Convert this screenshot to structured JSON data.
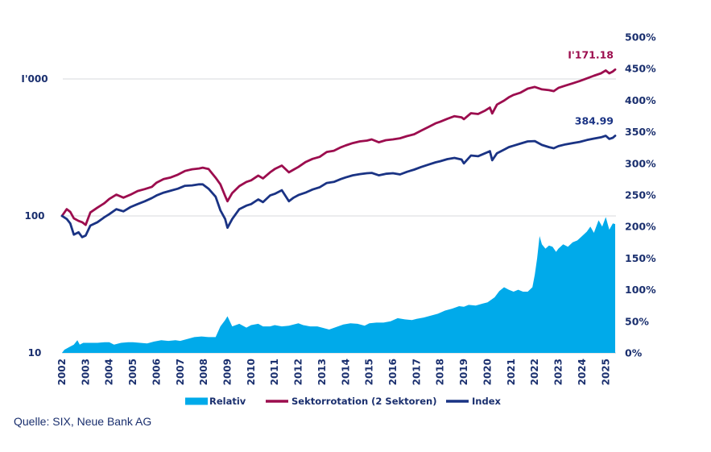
{
  "chart_data": {
    "type": "line",
    "x_axis": {
      "ticks": [
        "2002",
        "2003",
        "2004",
        "2005",
        "2006",
        "2007",
        "2008",
        "2009",
        "2010",
        "2011",
        "2012",
        "2013",
        "2014",
        "2015",
        "2016",
        "2017",
        "2018",
        "2019",
        "2020",
        "2021",
        "2022",
        "2023",
        "2024",
        "2025"
      ],
      "range": [
        2002,
        2025.4
      ]
    },
    "y_left": {
      "scale": "log",
      "range": [
        10,
        5000
      ],
      "ticks": [
        10,
        100,
        1000
      ],
      "tick_labels": [
        "10",
        "100",
        "I'000"
      ]
    },
    "y_right": {
      "range": [
        0,
        500
      ],
      "ticks": [
        0,
        50,
        100,
        150,
        200,
        250,
        300,
        350,
        400,
        450,
        500
      ],
      "tick_labels": [
        "0%",
        "50%",
        "100%",
        "150%",
        "200%",
        "250%",
        "300%",
        "350%",
        "400%",
        "450%",
        "500%"
      ]
    },
    "grid": "horizontal at 100 and 1000 on left axis",
    "series": [
      {
        "name": "Relativ",
        "type": "area",
        "axis": "right",
        "color": "#00aaea",
        "points": [
          [
            2002.0,
            0
          ],
          [
            2002.1,
            5
          ],
          [
            2002.3,
            9
          ],
          [
            2002.5,
            13
          ],
          [
            2002.65,
            20
          ],
          [
            2002.75,
            13
          ],
          [
            2002.9,
            16
          ],
          [
            2003.2,
            16
          ],
          [
            2003.5,
            16
          ],
          [
            2003.8,
            17
          ],
          [
            2004.0,
            17
          ],
          [
            2004.2,
            13
          ],
          [
            2004.5,
            16
          ],
          [
            2004.8,
            17
          ],
          [
            2005.0,
            17
          ],
          [
            2005.3,
            16
          ],
          [
            2005.6,
            15
          ],
          [
            2005.9,
            18
          ],
          [
            2006.2,
            20
          ],
          [
            2006.5,
            19
          ],
          [
            2006.8,
            20
          ],
          [
            2007.0,
            19
          ],
          [
            2007.3,
            22
          ],
          [
            2007.6,
            25
          ],
          [
            2007.9,
            26
          ],
          [
            2008.2,
            25
          ],
          [
            2008.5,
            25
          ],
          [
            2008.7,
            42
          ],
          [
            2008.9,
            52
          ],
          [
            2009.0,
            58
          ],
          [
            2009.1,
            50
          ],
          [
            2009.2,
            42
          ],
          [
            2009.5,
            46
          ],
          [
            2009.8,
            40
          ],
          [
            2010.0,
            44
          ],
          [
            2010.3,
            46
          ],
          [
            2010.5,
            42
          ],
          [
            2010.8,
            42
          ],
          [
            2011.0,
            44
          ],
          [
            2011.3,
            42
          ],
          [
            2011.6,
            43
          ],
          [
            2011.8,
            45
          ],
          [
            2012.0,
            47
          ],
          [
            2012.2,
            44
          ],
          [
            2012.5,
            42
          ],
          [
            2012.8,
            42
          ],
          [
            2013.0,
            40
          ],
          [
            2013.3,
            37
          ],
          [
            2013.6,
            41
          ],
          [
            2013.9,
            45
          ],
          [
            2014.2,
            47
          ],
          [
            2014.5,
            46
          ],
          [
            2014.8,
            43
          ],
          [
            2015.0,
            47
          ],
          [
            2015.3,
            48
          ],
          [
            2015.6,
            48
          ],
          [
            2015.9,
            50
          ],
          [
            2016.2,
            55
          ],
          [
            2016.5,
            53
          ],
          [
            2016.8,
            52
          ],
          [
            2017.0,
            54
          ],
          [
            2017.3,
            56
          ],
          [
            2017.6,
            59
          ],
          [
            2017.9,
            62
          ],
          [
            2018.2,
            67
          ],
          [
            2018.5,
            70
          ],
          [
            2018.8,
            74
          ],
          [
            2019.0,
            73
          ],
          [
            2019.2,
            76
          ],
          [
            2019.5,
            75
          ],
          [
            2019.8,
            78
          ],
          [
            2020.0,
            80
          ],
          [
            2020.3,
            88
          ],
          [
            2020.5,
            98
          ],
          [
            2020.7,
            104
          ],
          [
            2020.9,
            100
          ],
          [
            2021.1,
            97
          ],
          [
            2021.3,
            100
          ],
          [
            2021.5,
            97
          ],
          [
            2021.7,
            97
          ],
          [
            2021.9,
            104
          ],
          [
            2022.0,
            124
          ],
          [
            2022.1,
            150
          ],
          [
            2022.2,
            185
          ],
          [
            2022.3,
            172
          ],
          [
            2022.45,
            165
          ],
          [
            2022.6,
            170
          ],
          [
            2022.75,
            168
          ],
          [
            2022.9,
            160
          ],
          [
            2023.0,
            165
          ],
          [
            2023.2,
            172
          ],
          [
            2023.4,
            168
          ],
          [
            2023.6,
            175
          ],
          [
            2023.8,
            178
          ],
          [
            2024.0,
            185
          ],
          [
            2024.2,
            192
          ],
          [
            2024.35,
            200
          ],
          [
            2024.5,
            190
          ],
          [
            2024.7,
            210
          ],
          [
            2024.85,
            200
          ],
          [
            2025.0,
            215
          ],
          [
            2025.15,
            195
          ],
          [
            2025.3,
            205
          ],
          [
            2025.4,
            204
          ]
        ]
      },
      {
        "name": "Sektorrotation (2 Sektoren)",
        "type": "line",
        "axis": "left",
        "color": "#9c0d4e",
        "end_label": "I'171.18",
        "points": [
          [
            2002.0,
            100
          ],
          [
            2002.2,
            112
          ],
          [
            2002.35,
            107
          ],
          [
            2002.5,
            96
          ],
          [
            2002.7,
            92
          ],
          [
            2002.85,
            90
          ],
          [
            2003.0,
            86
          ],
          [
            2003.2,
            106
          ],
          [
            2003.5,
            115
          ],
          [
            2003.8,
            124
          ],
          [
            2004.0,
            133
          ],
          [
            2004.3,
            143
          ],
          [
            2004.6,
            136
          ],
          [
            2004.9,
            143
          ],
          [
            2005.2,
            152
          ],
          [
            2005.5,
            157
          ],
          [
            2005.8,
            163
          ],
          [
            2006.0,
            175
          ],
          [
            2006.3,
            186
          ],
          [
            2006.6,
            191
          ],
          [
            2006.9,
            200
          ],
          [
            2007.2,
            213
          ],
          [
            2007.5,
            219
          ],
          [
            2007.8,
            222
          ],
          [
            2007.95,
            225
          ],
          [
            2008.2,
            220
          ],
          [
            2008.5,
            190
          ],
          [
            2008.7,
            170
          ],
          [
            2008.9,
            140
          ],
          [
            2009.0,
            128
          ],
          [
            2009.2,
            147
          ],
          [
            2009.5,
            165
          ],
          [
            2009.8,
            177
          ],
          [
            2010.0,
            182
          ],
          [
            2010.3,
            197
          ],
          [
            2010.5,
            188
          ],
          [
            2010.8,
            208
          ],
          [
            2011.0,
            220
          ],
          [
            2011.3,
            233
          ],
          [
            2011.6,
            208
          ],
          [
            2011.8,
            218
          ],
          [
            2012.0,
            228
          ],
          [
            2012.3,
            247
          ],
          [
            2012.6,
            261
          ],
          [
            2012.9,
            270
          ],
          [
            2013.2,
            293
          ],
          [
            2013.5,
            299
          ],
          [
            2013.8,
            317
          ],
          [
            2014.0,
            327
          ],
          [
            2014.3,
            340
          ],
          [
            2014.6,
            350
          ],
          [
            2014.9,
            355
          ],
          [
            2015.1,
            362
          ],
          [
            2015.4,
            345
          ],
          [
            2015.7,
            357
          ],
          [
            2016.0,
            362
          ],
          [
            2016.3,
            369
          ],
          [
            2016.6,
            383
          ],
          [
            2016.9,
            395
          ],
          [
            2017.2,
            420
          ],
          [
            2017.5,
            446
          ],
          [
            2017.8,
            474
          ],
          [
            2018.0,
            487
          ],
          [
            2018.3,
            512
          ],
          [
            2018.6,
            535
          ],
          [
            2018.9,
            525
          ],
          [
            2019.0,
            509
          ],
          [
            2019.3,
            562
          ],
          [
            2019.6,
            555
          ],
          [
            2019.9,
            588
          ],
          [
            2020.1,
            618
          ],
          [
            2020.2,
            560
          ],
          [
            2020.4,
            650
          ],
          [
            2020.7,
            695
          ],
          [
            2020.9,
            734
          ],
          [
            2021.1,
            765
          ],
          [
            2021.4,
            795
          ],
          [
            2021.7,
            850
          ],
          [
            2022.0,
            874
          ],
          [
            2022.3,
            840
          ],
          [
            2022.6,
            828
          ],
          [
            2022.8,
            815
          ],
          [
            2023.0,
            860
          ],
          [
            2023.3,
            895
          ],
          [
            2023.6,
            930
          ],
          [
            2023.9,
            965
          ],
          [
            2024.2,
            1010
          ],
          [
            2024.5,
            1055
          ],
          [
            2024.8,
            1100
          ],
          [
            2025.0,
            1155
          ],
          [
            2025.15,
            1100
          ],
          [
            2025.3,
            1135
          ],
          [
            2025.4,
            1171.18
          ]
        ]
      },
      {
        "name": "Index",
        "type": "line",
        "axis": "left",
        "color": "#1a3384",
        "end_label": "384.99",
        "points": [
          [
            2002.0,
            100
          ],
          [
            2002.2,
            95
          ],
          [
            2002.35,
            88
          ],
          [
            2002.5,
            73
          ],
          [
            2002.7,
            76
          ],
          [
            2002.85,
            70
          ],
          [
            2003.0,
            72
          ],
          [
            2003.2,
            85
          ],
          [
            2003.5,
            90
          ],
          [
            2003.8,
            98
          ],
          [
            2004.0,
            103
          ],
          [
            2004.3,
            112
          ],
          [
            2004.6,
            108
          ],
          [
            2004.9,
            116
          ],
          [
            2005.2,
            122
          ],
          [
            2005.5,
            128
          ],
          [
            2005.8,
            135
          ],
          [
            2006.0,
            141
          ],
          [
            2006.3,
            148
          ],
          [
            2006.6,
            153
          ],
          [
            2006.9,
            158
          ],
          [
            2007.2,
            166
          ],
          [
            2007.5,
            167
          ],
          [
            2007.8,
            170
          ],
          [
            2007.95,
            170
          ],
          [
            2008.2,
            158
          ],
          [
            2008.5,
            138
          ],
          [
            2008.7,
            110
          ],
          [
            2008.9,
            95
          ],
          [
            2009.0,
            82
          ],
          [
            2009.2,
            95
          ],
          [
            2009.5,
            112
          ],
          [
            2009.8,
            119
          ],
          [
            2010.0,
            122
          ],
          [
            2010.3,
            132
          ],
          [
            2010.5,
            126
          ],
          [
            2010.8,
            141
          ],
          [
            2011.0,
            145
          ],
          [
            2011.3,
            154
          ],
          [
            2011.6,
            128
          ],
          [
            2011.8,
            136
          ],
          [
            2012.0,
            142
          ],
          [
            2012.3,
            148
          ],
          [
            2012.6,
            156
          ],
          [
            2012.9,
            162
          ],
          [
            2013.2,
            174
          ],
          [
            2013.5,
            177
          ],
          [
            2013.8,
            186
          ],
          [
            2014.0,
            191
          ],
          [
            2014.3,
            198
          ],
          [
            2014.6,
            202
          ],
          [
            2014.9,
            205
          ],
          [
            2015.1,
            206
          ],
          [
            2015.4,
            198
          ],
          [
            2015.7,
            203
          ],
          [
            2016.0,
            205
          ],
          [
            2016.3,
            201
          ],
          [
            2016.6,
            210
          ],
          [
            2016.9,
            218
          ],
          [
            2017.2,
            228
          ],
          [
            2017.5,
            237
          ],
          [
            2017.8,
            246
          ],
          [
            2018.0,
            251
          ],
          [
            2018.3,
            260
          ],
          [
            2018.6,
            265
          ],
          [
            2018.9,
            258
          ],
          [
            2019.0,
            242
          ],
          [
            2019.3,
            276
          ],
          [
            2019.6,
            273
          ],
          [
            2019.9,
            287
          ],
          [
            2020.1,
            297
          ],
          [
            2020.2,
            255
          ],
          [
            2020.4,
            287
          ],
          [
            2020.7,
            305
          ],
          [
            2020.9,
            318
          ],
          [
            2021.1,
            326
          ],
          [
            2021.4,
            338
          ],
          [
            2021.7,
            350
          ],
          [
            2022.0,
            352
          ],
          [
            2022.3,
            330
          ],
          [
            2022.6,
            318
          ],
          [
            2022.8,
            312
          ],
          [
            2023.0,
            323
          ],
          [
            2023.3,
            333
          ],
          [
            2023.6,
            340
          ],
          [
            2023.9,
            347
          ],
          [
            2024.2,
            358
          ],
          [
            2024.5,
            367
          ],
          [
            2024.8,
            375
          ],
          [
            2025.0,
            385
          ],
          [
            2025.15,
            365
          ],
          [
            2025.3,
            372
          ],
          [
            2025.4,
            384.99
          ]
        ]
      }
    ],
    "legend": {
      "placement": "bottom-center",
      "items": [
        {
          "label": "Relativ",
          "color": "#00aaea",
          "marker": "block"
        },
        {
          "label": "Sektorrotation (2 Sektoren)",
          "color": "#9c0d4e",
          "marker": "line"
        },
        {
          "label": "Index",
          "color": "#1a3384",
          "marker": "line"
        }
      ]
    }
  },
  "source": "Quelle: SIX, Neue Bank AG"
}
